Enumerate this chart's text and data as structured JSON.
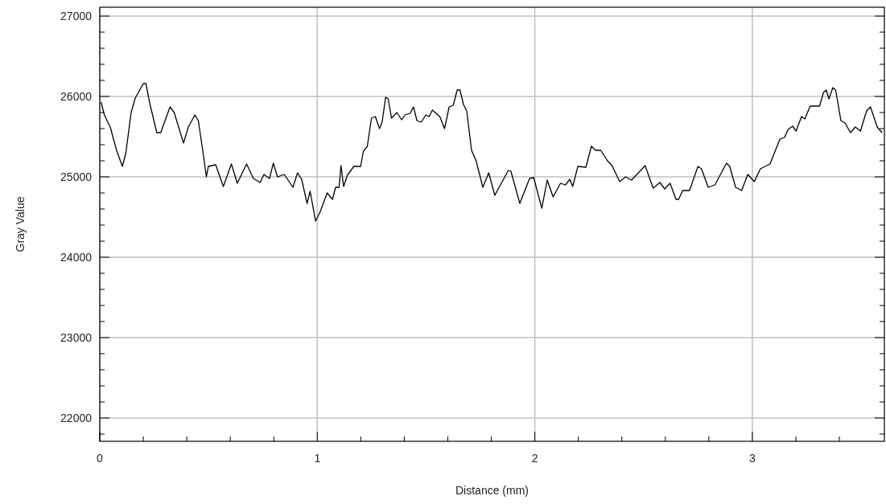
{
  "chart_data": {
    "type": "line",
    "xlabel": "Distance (mm)",
    "ylabel": "Gray Value",
    "xlim": [
      0,
      3.607
    ],
    "ylim": [
      21710,
      27110
    ],
    "grid": true,
    "line_style": "solid",
    "xticks": [
      0,
      {
        "value": 0.2,
        "label": null
      },
      {
        "value": 0.4,
        "label": null
      },
      {
        "value": 0.6,
        "label": null
      },
      {
        "value": 0.8,
        "label": null
      },
      1,
      {
        "value": 1.2,
        "label": null
      },
      {
        "value": 1.4,
        "label": null
      },
      {
        "value": 1.6,
        "label": null
      },
      {
        "value": 1.8,
        "label": null
      },
      2,
      {
        "value": 2.2,
        "label": null
      },
      {
        "value": 2.4,
        "label": null
      },
      {
        "value": 2.6,
        "label": null
      },
      {
        "value": 2.8,
        "label": null
      },
      3,
      {
        "value": 3.2,
        "label": null
      },
      {
        "value": 3.4,
        "label": null
      }
    ],
    "yticks": [
      {
        "value": 21800,
        "label": null
      },
      22000,
      {
        "value": 22200,
        "label": null
      },
      {
        "value": 22400,
        "label": null
      },
      {
        "value": 22600,
        "label": null
      },
      {
        "value": 22800,
        "label": null
      },
      23000,
      {
        "value": 23200,
        "label": null
      },
      {
        "value": 23400,
        "label": null
      },
      {
        "value": 23600,
        "label": null
      },
      {
        "value": 23800,
        "label": null
      },
      24000,
      {
        "value": 24200,
        "label": null
      },
      {
        "value": 24400,
        "label": null
      },
      {
        "value": 24600,
        "label": null
      },
      {
        "value": 24800,
        "label": null
      },
      25000,
      {
        "value": 25200,
        "label": null
      },
      {
        "value": 25400,
        "label": null
      },
      {
        "value": 25600,
        "label": null
      },
      {
        "value": 25800,
        "label": null
      },
      26000,
      {
        "value": 26200,
        "label": null
      },
      {
        "value": 26400,
        "label": null
      },
      {
        "value": 26600,
        "label": null
      },
      {
        "value": 26800,
        "label": null
      },
      27000
    ],
    "series": [
      {
        "color": "#000000",
        "x": [
          0.006,
          0.02,
          0.033,
          0.048,
          0.077,
          0.104,
          0.12,
          0.144,
          0.163,
          0.2,
          0.212,
          0.231,
          0.262,
          0.28,
          0.323,
          0.342,
          0.385,
          0.407,
          0.437,
          0.453,
          0.471,
          0.49,
          0.499,
          0.533,
          0.568,
          0.605,
          0.632,
          0.675,
          0.706,
          0.737,
          0.755,
          0.78,
          0.798,
          0.817,
          0.848,
          0.888,
          0.909,
          0.928,
          0.953,
          0.967,
          0.992,
          1.014,
          1.045,
          1.07,
          1.084,
          1.1,
          1.109,
          1.121,
          1.138,
          1.168,
          1.199,
          1.212,
          1.23,
          1.249,
          1.267,
          1.286,
          1.298,
          1.314,
          1.326,
          1.341,
          1.366,
          1.388,
          1.403,
          1.427,
          1.442,
          1.458,
          1.477,
          1.499,
          1.514,
          1.529,
          1.563,
          1.585,
          1.606,
          1.625,
          1.643,
          1.656,
          1.672,
          1.687,
          1.709,
          1.73,
          1.761,
          1.788,
          1.816,
          1.878,
          1.89,
          1.931,
          1.976,
          1.995,
          2.032,
          2.057,
          2.084,
          2.118,
          2.141,
          2.161,
          2.174,
          2.198,
          2.235,
          2.26,
          2.279,
          2.303,
          2.334,
          2.355,
          2.39,
          2.417,
          2.445,
          2.476,
          2.507,
          2.544,
          2.575,
          2.597,
          2.622,
          2.649,
          2.661,
          2.68,
          2.711,
          2.75,
          2.766,
          2.797,
          2.828,
          2.881,
          2.896,
          2.923,
          2.951,
          2.979,
          3.009,
          3.037,
          3.081,
          3.127,
          3.148,
          3.164,
          3.185,
          3.201,
          3.226,
          3.241,
          3.266,
          3.309,
          3.327,
          3.34,
          3.352,
          3.37,
          3.383,
          3.407,
          3.426,
          3.451,
          3.473,
          3.497,
          3.525,
          3.543,
          3.574,
          3.596
        ],
        "values": [
          25930,
          25780,
          25700,
          25620,
          25330,
          25130,
          25300,
          25800,
          25980,
          26160,
          26160,
          25900,
          25550,
          25550,
          25870,
          25800,
          25420,
          25620,
          25770,
          25700,
          25370,
          25000,
          25130,
          25150,
          24880,
          25160,
          24920,
          25160,
          24980,
          24930,
          25030,
          24980,
          25170,
          25000,
          25030,
          24870,
          25050,
          24970,
          24670,
          24820,
          24450,
          24570,
          24800,
          24720,
          24870,
          24870,
          25140,
          24880,
          25020,
          25130,
          25130,
          25320,
          25380,
          25730,
          25750,
          25600,
          25680,
          25990,
          25970,
          25730,
          25800,
          25710,
          25770,
          25790,
          25870,
          25700,
          25680,
          25770,
          25750,
          25830,
          25750,
          25600,
          25870,
          25890,
          26080,
          26080,
          25900,
          25820,
          25330,
          25200,
          24870,
          25050,
          24770,
          25080,
          25070,
          24670,
          24980,
          24990,
          24610,
          24960,
          24750,
          24920,
          24900,
          24970,
          24880,
          25130,
          25120,
          25380,
          25330,
          25330,
          25200,
          25140,
          24940,
          25000,
          24960,
          25050,
          25140,
          24860,
          24930,
          24850,
          24920,
          24720,
          24720,
          24830,
          24830,
          25130,
          25100,
          24870,
          24900,
          25170,
          25130,
          24870,
          24830,
          25030,
          24940,
          25100,
          25160,
          25470,
          25490,
          25590,
          25630,
          25570,
          25750,
          25720,
          25880,
          25880,
          26050,
          26080,
          25970,
          26110,
          26080,
          25700,
          25670,
          25550,
          25620,
          25570,
          25820,
          25870,
          25620,
          25550
        ]
      }
    ]
  }
}
